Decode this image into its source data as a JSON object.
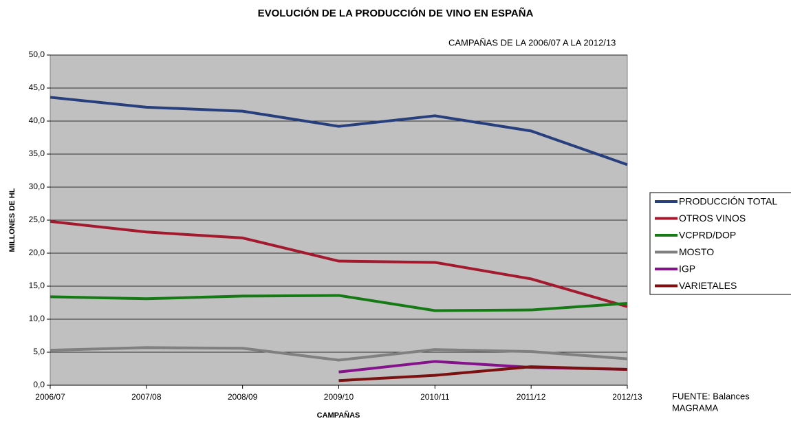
{
  "chart_data": {
    "type": "line",
    "title": "EVOLUCIÓN DE LA PRODUCCIÓN DE VINO EN ESPAÑA",
    "subtitle": "CAMPAÑAS DE LA 2006/07 A LA 2012/13",
    "ylabel": "MILLONES DE HL",
    "xlabel": "CAMPAÑAS",
    "source": [
      "FUENTE: Balances",
      "MAGRAMA"
    ],
    "categories": [
      "2006/07",
      "2007/08",
      "2008/09",
      "2009/10",
      "2010/11",
      "2011/12",
      "2012/13"
    ],
    "series": [
      {
        "name": "PRODUCCIÓN TOTAL",
        "color": "#283f7d",
        "values": [
          43.6,
          42.1,
          41.5,
          39.2,
          40.8,
          38.5,
          33.4
        ]
      },
      {
        "name": "OTROS VINOS",
        "color": "#a3192e",
        "values": [
          24.8,
          23.2,
          22.3,
          18.8,
          18.6,
          16.1,
          11.9
        ]
      },
      {
        "name": "VCPRD/DOP",
        "color": "#157a14",
        "values": [
          13.4,
          13.1,
          13.5,
          13.6,
          11.3,
          11.4,
          12.4
        ]
      },
      {
        "name": "MOSTO",
        "color": "#808080",
        "values": [
          5.3,
          5.7,
          5.6,
          3.8,
          5.4,
          5.1,
          4.0
        ]
      },
      {
        "name": "IGP",
        "color": "#84128a",
        "values": [
          null,
          null,
          null,
          2.0,
          3.6,
          2.7,
          2.4
        ]
      },
      {
        "name": "VARIETALES",
        "color": "#7a1010",
        "values": [
          null,
          null,
          null,
          0.7,
          1.5,
          2.8,
          2.4
        ]
      }
    ],
    "ylim": [
      0,
      50
    ],
    "yticks": [
      {
        "value": 0,
        "label": "0,0"
      },
      {
        "value": 5,
        "label": "5,0"
      },
      {
        "value": 10,
        "label": "10,0"
      },
      {
        "value": 15,
        "label": "15,0"
      },
      {
        "value": 20,
        "label": "20,0"
      },
      {
        "value": 25,
        "label": "25,0"
      },
      {
        "value": 30,
        "label": "30,0"
      },
      {
        "value": 35,
        "label": "35,0"
      },
      {
        "value": 40,
        "label": "40,0"
      },
      {
        "value": 45,
        "label": "45,0"
      },
      {
        "value": 50,
        "label": "50,0"
      }
    ],
    "grid": true,
    "legend": "right"
  }
}
